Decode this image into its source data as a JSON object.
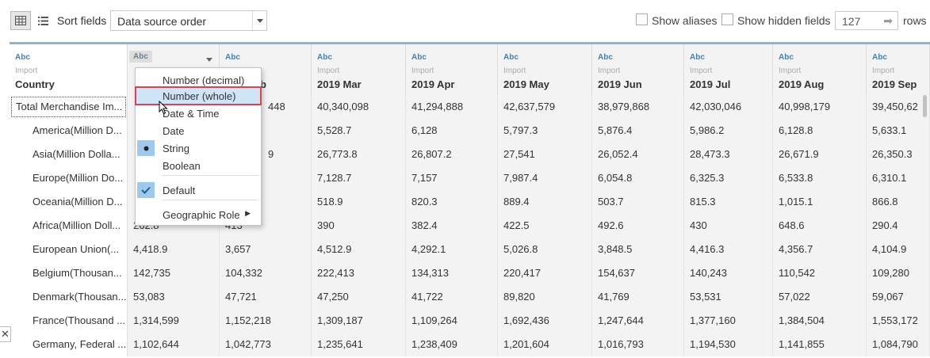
{
  "toolbar": {
    "sort_label": "Sort fields",
    "sort_value": "Data source order",
    "show_aliases": "Show aliases",
    "show_hidden": "Show hidden fields",
    "rows_value": "127",
    "rows_label": "rows"
  },
  "headers": [
    {
      "type": "Abc",
      "source": "Import",
      "name": "Country"
    },
    {
      "type": "Abc",
      "source": "",
      "name": ""
    },
    {
      "type": "Abc",
      "source": "",
      "name": "b"
    },
    {
      "type": "Abc",
      "source": "Import",
      "name": "2019 Mar"
    },
    {
      "type": "Abc",
      "source": "Import",
      "name": "2019 Apr"
    },
    {
      "type": "Abc",
      "source": "Import",
      "name": "2019 May"
    },
    {
      "type": "Abc",
      "source": "Import",
      "name": "2019 Jun"
    },
    {
      "type": "Abc",
      "source": "Import",
      "name": "2019 Jul"
    },
    {
      "type": "Abc",
      "source": "Import",
      "name": "2019 Aug"
    },
    {
      "type": "Abc",
      "source": "Import",
      "name": "2019 Sep"
    }
  ],
  "rows": [
    [
      "Total Merchandise Im...",
      "",
      "448",
      "40,340,098",
      "41,294,888",
      "42,637,579",
      "38,979,868",
      "42,030,046",
      "40,998,179",
      "39,450,62"
    ],
    [
      "America(Million D...",
      "",
      "",
      "5,528.7",
      "6,128",
      "5,797.3",
      "5,876.4",
      "5,986.2",
      "6,128.8",
      "5,633.1"
    ],
    [
      "Asia(Million Dolla...",
      "",
      "9",
      "26,773.8",
      "26,807.2",
      "27,541",
      "26,052.4",
      "28,473.3",
      "26,671.9",
      "26,350.3"
    ],
    [
      "Europe(Million Do...",
      "",
      "",
      "7,128.7",
      "7,157",
      "7,987.4",
      "6,054.8",
      "6,325.3",
      "6,533.8",
      "6,310.1"
    ],
    [
      "Oceania(Million D...",
      "",
      "",
      "518.9",
      "820.3",
      "889.4",
      "503.7",
      "815.3",
      "1,015.1",
      "866.8"
    ],
    [
      "Africa(Million Doll...",
      "262.8",
      "413",
      "390",
      "382.4",
      "422.5",
      "492.6",
      "430",
      "648.6",
      "290.4"
    ],
    [
      "European Union(...",
      "4,418.9",
      "3,657",
      "4,512.9",
      "4,292.1",
      "5,026.8",
      "3,848.5",
      "4,416.3",
      "4,356.7",
      "4,104.9"
    ],
    [
      "Belgium(Thousan...",
      "142,735",
      "104,332",
      "222,413",
      "134,313",
      "220,417",
      "154,637",
      "140,243",
      "110,542",
      "109,280"
    ],
    [
      "Denmark(Thousan...",
      "53,083",
      "47,721",
      "47,250",
      "41,722",
      "89,820",
      "41,769",
      "53,531",
      "57,022",
      "59,067"
    ],
    [
      "France(Thousand ...",
      "1,314,599",
      "1,152,218",
      "1,309,187",
      "1,109,264",
      "1,692,436",
      "1,247,644",
      "1,377,160",
      "1,384,504",
      "1,553,172"
    ],
    [
      "Germany, Federal ...",
      "1,102,644",
      "1,042,773",
      "1,235,641",
      "1,238,409",
      "1,201,604",
      "1,016,793",
      "1,194,530",
      "1,141,855",
      "1,084,790"
    ]
  ],
  "menu": {
    "items": [
      {
        "label": "Number (decimal)",
        "mark": ""
      },
      {
        "label": "Number (whole)",
        "mark": "",
        "highlighted": true
      },
      {
        "label": "Date & Time",
        "mark": ""
      },
      {
        "label": "Date",
        "mark": ""
      },
      {
        "label": "String",
        "mark": "dot"
      },
      {
        "label": "Boolean",
        "mark": ""
      },
      {
        "label": "Default",
        "mark": "check"
      },
      {
        "label": "Geographic Role",
        "mark": "",
        "submenu": true
      }
    ]
  },
  "colors": {
    "accent": "#8fb4cf",
    "type_icon": "#4b7ea6",
    "highlight_border": "#d9434f",
    "selection_fill": "#cfe5f7",
    "mark_fill": "#9ec9ec"
  },
  "icons": [
    "grid-view-icon",
    "list-view-icon",
    "chevron-down-icon",
    "arrow-right-icon",
    "bullet-icon",
    "checkmark-icon",
    "submenu-arrow-icon",
    "close-icon",
    "cursor-icon"
  ]
}
